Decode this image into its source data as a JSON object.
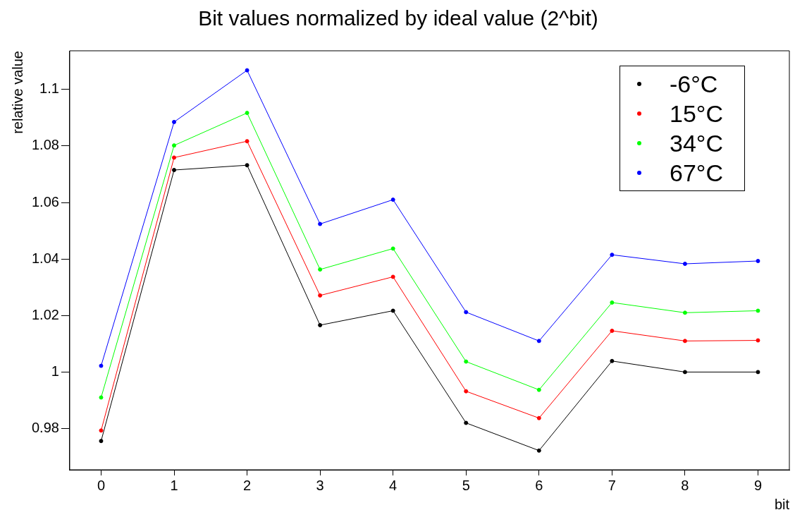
{
  "chart_data": {
    "type": "line",
    "title": "Bit values normalized by ideal value (2^bit)",
    "xlabel": "bit",
    "ylabel": "relative value",
    "x": [
      0,
      1,
      2,
      3,
      4,
      5,
      6,
      7,
      8,
      9
    ],
    "xlim": [
      -0.43,
      9.43
    ],
    "xticks": [
      0,
      1,
      2,
      3,
      4,
      5,
      6,
      7,
      8,
      9
    ],
    "ylim": [
      0.9654,
      1.1137
    ],
    "yticks": [
      0.98,
      1,
      1.02,
      1.04,
      1.06,
      1.08,
      1.1
    ],
    "series": [
      {
        "name": "-6°C",
        "color": "#000000",
        "values": [
          0.9756,
          1.0715,
          1.0732,
          1.0166,
          1.0217,
          0.982,
          0.9722,
          1.0039,
          1.0,
          1.0
        ]
      },
      {
        "name": "15°C",
        "color": "#ff0000",
        "values": [
          0.9793,
          1.0759,
          1.0817,
          1.0271,
          1.0337,
          0.9932,
          0.9837,
          1.0146,
          1.011,
          1.0112
        ]
      },
      {
        "name": "34°C",
        "color": "#00ff00",
        "values": [
          0.991,
          1.0802,
          1.0917,
          1.0363,
          1.0437,
          1.0037,
          0.9937,
          1.0246,
          1.021,
          1.0217
        ]
      },
      {
        "name": "67°C",
        "color": "#0000ff",
        "values": [
          1.0022,
          1.0885,
          1.1068,
          1.0524,
          1.061,
          1.0212,
          1.011,
          1.0415,
          1.0383,
          1.0393
        ]
      }
    ],
    "legend": "top right",
    "grid": false,
    "marker": "circle",
    "line_style": "solid"
  }
}
